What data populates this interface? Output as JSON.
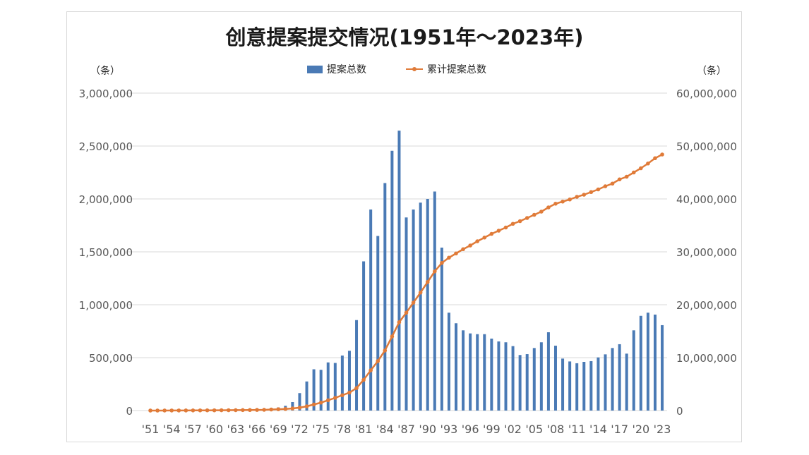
{
  "chart_data": {
    "type": "bar+line",
    "title": "创意提案提交情况(1951年～2023年)",
    "legend": {
      "placement": "top-center",
      "items": [
        {
          "name": "提案总数",
          "kind": "bar",
          "color": "#4a7ab5"
        },
        {
          "name": "累计提案总数",
          "kind": "line",
          "color": "#e07b39"
        }
      ]
    },
    "left_axis": {
      "unit_label": "（条）",
      "ylim": [
        0,
        3000000
      ],
      "ticks": [
        0,
        500000,
        1000000,
        1500000,
        2000000,
        2500000,
        3000000
      ],
      "tick_labels": [
        "0",
        "500,000",
        "1,000,000",
        "1,500,000",
        "2,000,000",
        "2,500,000",
        "3,000,000"
      ]
    },
    "right_axis": {
      "unit_label": "（条）",
      "ylim": [
        0,
        60000000
      ],
      "ticks": [
        0,
        10000000,
        20000000,
        30000000,
        40000000,
        50000000,
        60000000
      ],
      "tick_labels": [
        "0",
        "10,000,000",
        "20,000,000",
        "30,000,000",
        "40,000,000",
        "50,000,000",
        "60,000,000"
      ]
    },
    "grid": true,
    "x": [
      1951,
      1952,
      1953,
      1954,
      1955,
      1956,
      1957,
      1958,
      1959,
      1960,
      1961,
      1962,
      1963,
      1964,
      1965,
      1966,
      1967,
      1968,
      1969,
      1970,
      1971,
      1972,
      1973,
      1974,
      1975,
      1976,
      1977,
      1978,
      1979,
      1980,
      1981,
      1982,
      1983,
      1984,
      1985,
      1986,
      1987,
      1988,
      1989,
      1990,
      1991,
      1992,
      1993,
      1994,
      1995,
      1996,
      1997,
      1998,
      1999,
      2000,
      2001,
      2002,
      2003,
      2004,
      2005,
      2006,
      2007,
      2008,
      2009,
      2010,
      2011,
      2012,
      2013,
      2014,
      2015,
      2016,
      2017,
      2018,
      2019,
      2020,
      2021,
      2022,
      2023
    ],
    "x_tick_labels": [
      "'51",
      "'54",
      "'57",
      "'60",
      "'63",
      "'66",
      "'69",
      "'72",
      "'75",
      "'78",
      "'81",
      "'84",
      "'87",
      "'90",
      "'93",
      "'96",
      "'99",
      "'02",
      "'05",
      "'08",
      "'11",
      "'14",
      "'17",
      "'20",
      "'23"
    ],
    "x_tick_years": [
      1951,
      1954,
      1957,
      1960,
      1963,
      1966,
      1969,
      1972,
      1975,
      1978,
      1981,
      1984,
      1987,
      1990,
      1993,
      1996,
      1999,
      2002,
      2005,
      2008,
      2011,
      2014,
      2017,
      2020,
      2023
    ],
    "series": [
      {
        "name": "提案总数",
        "type": "bar",
        "axis": "left",
        "color": "#4a7ab5",
        "values": [
          2000,
          3000,
          3000,
          4000,
          4000,
          5000,
          5000,
          6000,
          7000,
          8000,
          9000,
          10000,
          11000,
          12000,
          14000,
          16000,
          20000,
          25000,
          30000,
          45000,
          80000,
          165000,
          275000,
          390000,
          385000,
          455000,
          450000,
          520000,
          565000,
          855000,
          1410000,
          1900000,
          1650000,
          2150000,
          2455000,
          2645000,
          1825000,
          1900000,
          1965000,
          2000000,
          2070000,
          1540000,
          925000,
          825000,
          758000,
          729000,
          722000,
          722000,
          680000,
          653000,
          645000,
          609000,
          525000,
          533000,
          591000,
          645000,
          740000,
          613000,
          491000,
          464000,
          447000,
          460000,
          467000,
          502000,
          531000,
          591000,
          627000,
          538000,
          758000,
          895000,
          925000,
          907000,
          807000
        ]
      },
      {
        "name": "累计提案总数",
        "type": "line",
        "axis": "right",
        "color": "#e07b39",
        "values": [
          2000,
          5000,
          8000,
          12000,
          16000,
          21000,
          26000,
          32000,
          39000,
          47000,
          56000,
          66000,
          77000,
          89000,
          103000,
          119000,
          139000,
          200000,
          250000,
          300000,
          400000,
          550000,
          800000,
          1150000,
          1500000,
          1950000,
          2400000,
          2900000,
          3400000,
          4250000,
          5800000,
          7600000,
          9350000,
          11350000,
          14000000,
          16700000,
          18500000,
          20400000,
          22300000,
          24300000,
          26300000,
          27900000,
          28900000,
          29700000,
          30500000,
          31200000,
          32000000,
          32700000,
          33400000,
          34000000,
          34600000,
          35300000,
          35800000,
          36400000,
          37000000,
          37600000,
          38400000,
          39100000,
          39500000,
          39900000,
          40400000,
          40800000,
          41300000,
          41800000,
          42400000,
          42900000,
          43700000,
          44200000,
          45000000,
          45800000,
          46700000,
          47700000,
          48400000
        ]
      }
    ]
  }
}
